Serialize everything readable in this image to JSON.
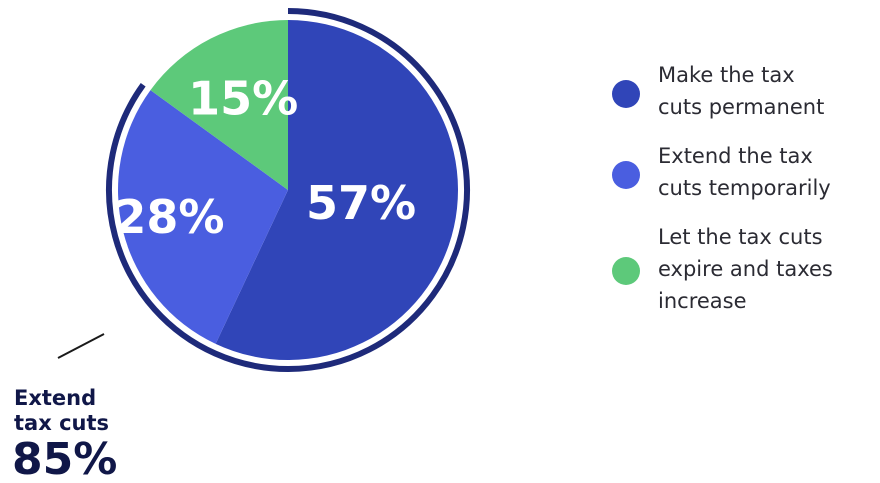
{
  "chart_data": {
    "type": "pie",
    "slices": [
      {
        "label": "Make the tax cuts permanent",
        "value": 57,
        "display": "57%",
        "color": "#3045b8"
      },
      {
        "label": "Extend the tax cuts temporarily",
        "value": 28,
        "display": "28%",
        "color": "#4a5ee0"
      },
      {
        "label": "Let the tax cuts expire and taxes increase",
        "value": 15,
        "display": "15%",
        "color": "#5dc97a"
      }
    ],
    "legend": {
      "placement": "right",
      "entries": [
        {
          "lines": [
            "Make the tax",
            "cuts permanent"
          ],
          "color": "#3045b8"
        },
        {
          "lines": [
            "Extend the tax",
            "cuts temporarily"
          ],
          "color": "#4a5ee0"
        },
        {
          "lines": [
            "Let the tax cuts",
            "expire and taxes",
            "increase"
          ],
          "color": "#5dc97a"
        }
      ]
    },
    "callout": {
      "lines": [
        "Extend",
        "tax cuts"
      ],
      "value": "85%",
      "value_number": 85,
      "arc_color": "#1e2a7a"
    }
  }
}
